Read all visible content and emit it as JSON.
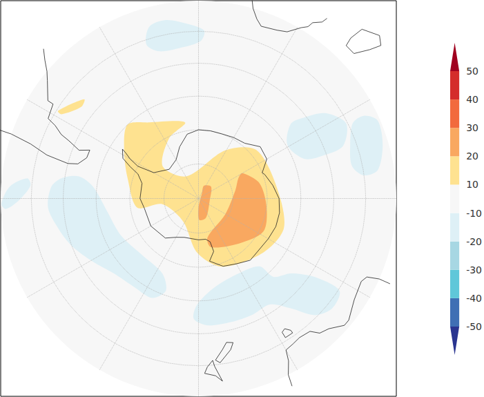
{
  "chart_data": {
    "type": "map",
    "colorbar": {
      "levels": [
        -50,
        -40,
        -30,
        -20,
        -10,
        10,
        20,
        30,
        40,
        50
      ],
      "colors": [
        "#2a3590",
        "#3f6fb4",
        "#5fc7d9",
        "#a7d7e3",
        "#def0f6",
        "#f7f7f7",
        "#fee290",
        "#f9a860",
        "#f26a3d",
        "#d42d2b",
        "#a0001f"
      ]
    },
    "regions": [
      {
        "band": [
          10,
          20
        ],
        "polygon": [
          [
            -44,
            -60
          ],
          [
            -33,
            -63.5
          ],
          [
            -10,
            -67.5
          ],
          [
            -26,
            -70.5
          ],
          [
            -48,
            -76
          ],
          [
            -28,
            -82.7
          ],
          [
            29,
            -74
          ],
          [
            50,
            -68
          ],
          [
            81,
            -67
          ],
          [
            109,
            -63.6
          ],
          [
            130,
            -65.4
          ],
          [
            161,
            -69
          ],
          [
            -178.5,
            -74.3
          ],
          [
            -146,
            -82
          ],
          [
            -99,
            -79.4
          ],
          [
            -98.5,
            -72
          ],
          [
            -75,
            -68.7
          ],
          [
            -58,
            -64.4
          ]
        ]
      },
      {
        "band": [
          10,
          20
        ],
        "polygon": [
          [
            -58,
            -40.5
          ],
          [
            -49,
            -45
          ],
          [
            -52,
            -45.8
          ],
          [
            -58.4,
            -42
          ]
        ]
      },
      {
        "band": [
          20,
          30
        ],
        "polygon": [
          [
            60,
            -75.3
          ],
          [
            76,
            -71.7
          ],
          [
            97.6,
            -70
          ],
          [
            117,
            -68.8
          ],
          [
            138,
            -72.4
          ],
          [
            165.6,
            -75.4
          ],
          [
            167,
            -78.4
          ],
          [
            121,
            -81
          ],
          [
            77,
            -79
          ],
          [
            63,
            -77
          ]
        ]
      },
      {
        "band": [
          20,
          30
        ],
        "polygon": [
          [
            23,
            -86
          ],
          [
            47,
            -85
          ],
          [
            101,
            -86.7
          ],
          [
            159,
            -84
          ],
          [
            178,
            -83.8
          ],
          [
            180,
            -87.4
          ],
          [
            35,
            -88.3
          ]
        ]
      },
      {
        "band": [
          -20,
          -10
        ],
        "polygon": [
          [
            -16,
            -36.3
          ],
          [
            -10.4,
            -35.4
          ],
          [
            -3.9,
            -37.4
          ],
          [
            1.9,
            -39.7
          ],
          [
            0.8,
            -43.1
          ],
          [
            -7.1,
            -44.9
          ],
          [
            -15,
            -44.7
          ],
          [
            -18.7,
            -41.5
          ]
        ]
      },
      {
        "band": [
          -20,
          -10
        ],
        "polygon": [
          [
            51,
            -55
          ],
          [
            52.6,
            -50.5
          ],
          [
            56,
            -44.6
          ],
          [
            63,
            -40.5
          ],
          [
            70,
            -44.2
          ],
          [
            71,
            -50.4
          ],
          [
            69.6,
            -56.7
          ],
          [
            59,
            -59.6
          ]
        ]
      },
      {
        "band": [
          -20,
          -10
        ],
        "polygon": [
          [
            64,
            -38.6
          ],
          [
            63.4,
            -34.3
          ],
          [
            66.5,
            -30.8
          ],
          [
            73.8,
            -32
          ],
          [
            81,
            -35.4
          ],
          [
            82,
            -40.2
          ],
          [
            78,
            -43.3
          ],
          [
            70.5,
            -42
          ]
        ]
      },
      {
        "band": [
          -20,
          -10
        ],
        "polygon": [
          [
            -85.4,
            -46.2
          ],
          [
            -81.6,
            -49
          ],
          [
            -79.5,
            -54.2
          ],
          [
            -83.6,
            -58.9
          ],
          [
            -97.8,
            -63
          ],
          [
            -115.3,
            -64.9
          ],
          [
            -134.6,
            -66.7
          ],
          [
            -154.3,
            -65.7
          ],
          [
            -160.5,
            -61.3
          ],
          [
            -155,
            -57.8
          ],
          [
            -144.3,
            -57.9
          ],
          [
            -131.5,
            -56.8
          ],
          [
            -121,
            -53.8
          ],
          [
            -110.5,
            -50
          ],
          [
            -102,
            -47.5
          ],
          [
            -93.4,
            -45.2
          ]
        ]
      },
      {
        "band": [
          -20,
          -10
        ],
        "polygon": [
          [
            -91.6,
            -30.2
          ],
          [
            -86.4,
            -32.9
          ],
          [
            -83.3,
            -38.3
          ],
          [
            -85.5,
            -39.6
          ],
          [
            -90.2,
            -36.4
          ],
          [
            -93.1,
            -31.7
          ]
        ]
      },
      {
        "band": [
          -20,
          -10
        ],
        "polygon": [
          [
            -179.3,
            -58.9
          ],
          [
            169.8,
            -63.6
          ],
          [
            151.8,
            -65.2
          ],
          [
            138,
            -63.3
          ],
          [
            136.3,
            -58.2
          ],
          [
            129,
            -55
          ],
          [
            124,
            -48.4
          ],
          [
            123.2,
            -39.6
          ],
          [
            129.3,
            -38.1
          ],
          [
            135,
            -40.7
          ],
          [
            140,
            -47.5
          ],
          [
            146,
            -52.3
          ],
          [
            155,
            -52.2
          ],
          [
            165,
            -52.3
          ],
          [
            176,
            -52.5
          ],
          [
            -177.7,
            -54.6
          ]
        ]
      }
    ]
  }
}
